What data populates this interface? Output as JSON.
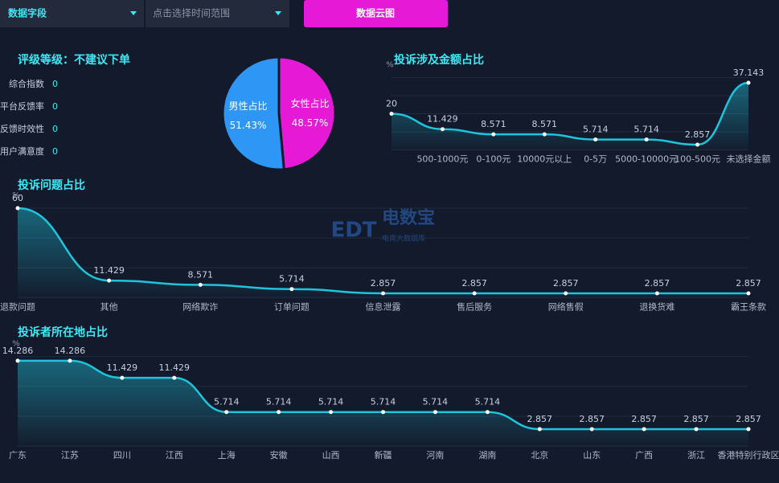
{
  "toolbar": {
    "field": "数据字段",
    "time": "点击选择时间范围",
    "button": "数据云图"
  },
  "rating": {
    "title": "评级等级：不建议下单",
    "items": [
      {
        "label": "综合指数",
        "value": "0"
      },
      {
        "label": "平台反馈率",
        "value": "0"
      },
      {
        "label": "反馈时效性",
        "value": "0"
      },
      {
        "label": "用户满意度",
        "value": "0"
      }
    ]
  },
  "watermark": {
    "logo": "EDT",
    "name": "电数宝",
    "sub": "电商大数据库"
  },
  "chart_data": [
    {
      "type": "pie",
      "categories": [
        "男性占比",
        "女性占比"
      ],
      "values": [
        51.43,
        48.57
      ],
      "value_labels": [
        "51.43%",
        "48.57%"
      ],
      "colors": [
        "#2e96f5",
        "#e61ad6"
      ]
    },
    {
      "type": "line",
      "title": "投诉涉及金额占比",
      "y_label": "%",
      "categories": [
        null,
        "500-1000元",
        "0-100元",
        "10000元以上",
        "0-5万",
        "5000-10000元",
        "100-500元",
        "未选择金额"
      ],
      "values": [
        20,
        11.429,
        8.571,
        8.571,
        5.714,
        5.714,
        2.857,
        37.143
      ],
      "color": "#1fc4dc",
      "ylim": [
        0,
        40
      ],
      "yticks": [
        0,
        10,
        20,
        30,
        40
      ],
      "grid": true
    },
    {
      "type": "line",
      "title": "投诉问题占比",
      "y_label": "%",
      "categories": [
        "退款问题",
        "其他",
        "网络欺诈",
        "订单问题",
        "信息泄露",
        "售后服务",
        "网络售假",
        "退换货难",
        "霸王条款"
      ],
      "values": [
        60,
        11.429,
        8.571,
        5.714,
        2.857,
        2.857,
        2.857,
        2.857,
        2.857
      ],
      "color": "#1fc4dc",
      "ylim": [
        0,
        60
      ],
      "yticks": [
        0,
        20,
        40,
        60
      ],
      "grid": true
    },
    {
      "type": "line",
      "title": "投诉者所在地占比",
      "y_label": "%",
      "categories": [
        "广东",
        "江苏",
        "四川",
        "江西",
        "上海",
        "安徽",
        "山西",
        "新疆",
        "河南",
        "湖南",
        "北京",
        "山东",
        "广西",
        "浙江",
        "香港特别行政区"
      ],
      "values": [
        14.286,
        14.286,
        11.429,
        11.429,
        5.714,
        5.714,
        5.714,
        5.714,
        5.714,
        5.714,
        2.857,
        2.857,
        2.857,
        2.857,
        2.857
      ],
      "color": "#1fc4dc",
      "ylim": [
        0,
        15
      ],
      "yticks": [
        0,
        5,
        10,
        15
      ],
      "grid": true
    }
  ]
}
